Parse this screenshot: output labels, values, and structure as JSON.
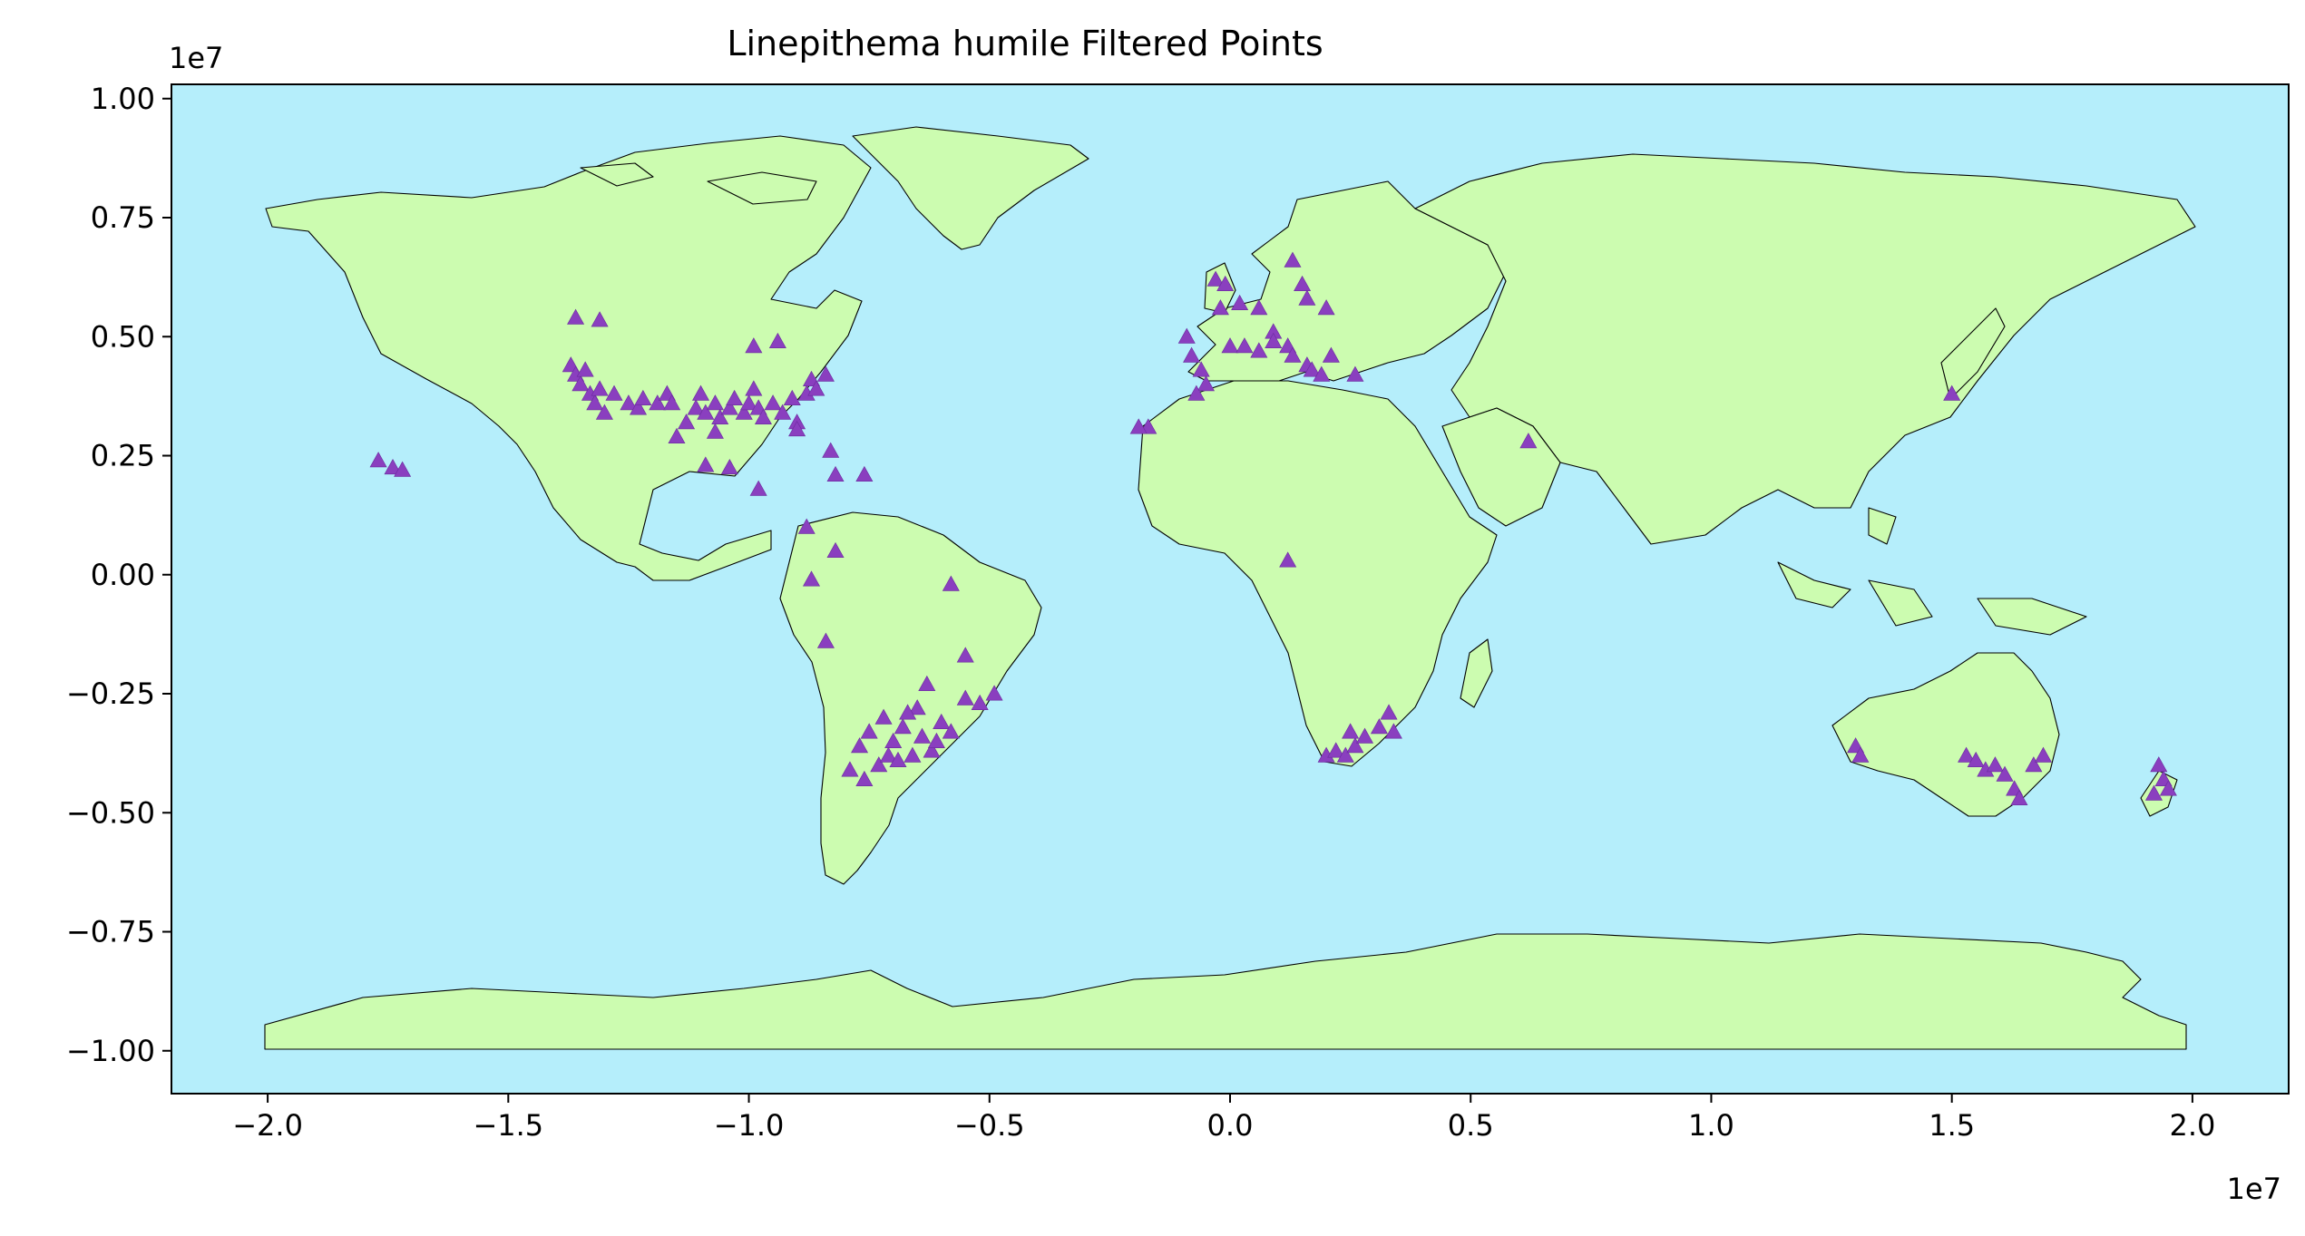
{
  "title": "Linepithema humile Filtered Points",
  "x_axis": {
    "ticks": [
      -20000000.0,
      -15000000.0,
      -10000000.0,
      -5000000.0,
      0.0,
      5000000.0,
      10000000.0,
      15000000.0,
      20000000.0
    ],
    "tick_labels": [
      "−2.0",
      "−1.5",
      "−1.0",
      "−0.5",
      "0.0",
      "0.5",
      "1.0",
      "1.5",
      "2.0"
    ],
    "offset_label": "1e7",
    "range": [
      -22000000.0,
      22000000.0
    ]
  },
  "y_axis": {
    "ticks": [
      10000000.0,
      7500000.0,
      5000000.0,
      2500000.0,
      0.0,
      -2500000.0,
      -5000000.0,
      -7500000.0,
      -10000000.0
    ],
    "tick_labels": [
      "1.00",
      "0.75",
      "0.50",
      "0.25",
      "0.00",
      "−0.25",
      "−0.50",
      "−0.75",
      "−1.00"
    ],
    "offset_label": "1e7",
    "range": [
      -10900000.0,
      10300000.0
    ]
  },
  "colors": {
    "ocean": "#b5eefb",
    "land": "#ccfcb0",
    "border": "#000000",
    "points": "#8a3fbf"
  },
  "marker": "triangle",
  "chart_data": {
    "type": "scatter",
    "title": "Linepithema humile Filtered Points",
    "xlim": [
      -22000000.0,
      22000000.0
    ],
    "ylim": [
      -10900000.0,
      10300000.0
    ],
    "grid": false,
    "points": [
      {
        "x": -13700000.0,
        "y": 4400000.0
      },
      {
        "x": -13600000.0,
        "y": 4200000.0
      },
      {
        "x": -13500000.0,
        "y": 4000000.0
      },
      {
        "x": -13400000.0,
        "y": 4300000.0
      },
      {
        "x": -13300000.0,
        "y": 3800000.0
      },
      {
        "x": -13200000.0,
        "y": 3600000.0
      },
      {
        "x": -13100000.0,
        "y": 3900000.0
      },
      {
        "x": -13000000.0,
        "y": 3400000.0
      },
      {
        "x": -13600000.0,
        "y": 5400000.0
      },
      {
        "x": -13100000.0,
        "y": 5350000.0
      },
      {
        "x": -12800000.0,
        "y": 3800000.0
      },
      {
        "x": -12500000.0,
        "y": 3600000.0
      },
      {
        "x": -12300000.0,
        "y": 3500000.0
      },
      {
        "x": -12200000.0,
        "y": 3700000.0
      },
      {
        "x": -11900000.0,
        "y": 3600000.0
      },
      {
        "x": -11700000.0,
        "y": 3800000.0
      },
      {
        "x": -11600000.0,
        "y": 3600000.0
      },
      {
        "x": -11300000.0,
        "y": 3200000.0
      },
      {
        "x": -11100000.0,
        "y": 3500000.0
      },
      {
        "x": -11000000.0,
        "y": 3800000.0
      },
      {
        "x": -10900000.0,
        "y": 3400000.0
      },
      {
        "x": -10700000.0,
        "y": 3600000.0
      },
      {
        "x": -10600000.0,
        "y": 3300000.0
      },
      {
        "x": -10400000.0,
        "y": 3500000.0
      },
      {
        "x": -10300000.0,
        "y": 3700000.0
      },
      {
        "x": -10100000.0,
        "y": 3400000.0
      },
      {
        "x": -10000000.0,
        "y": 3600000.0
      },
      {
        "x": -9800000.0,
        "y": 3500000.0
      },
      {
        "x": -9700000.0,
        "y": 3300000.0
      },
      {
        "x": -9500000.0,
        "y": 3600000.0
      },
      {
        "x": -9300000.0,
        "y": 3400000.0
      },
      {
        "x": -9100000.0,
        "y": 3700000.0
      },
      {
        "x": -9000000.0,
        "y": 3200000.0
      },
      {
        "x": -8800000.0,
        "y": 3800000.0
      },
      {
        "x": -8700000.0,
        "y": 4100000.0
      },
      {
        "x": -8600000.0,
        "y": 3900000.0
      },
      {
        "x": -8400000.0,
        "y": 4200000.0
      },
      {
        "x": -9900000.0,
        "y": 3900000.0
      },
      {
        "x": -10700000.0,
        "y": 3000000.0
      },
      {
        "x": -9000000.0,
        "y": 3050000.0
      },
      {
        "x": -11500000.0,
        "y": 2900000.0
      },
      {
        "x": -10900000.0,
        "y": 2300000.0
      },
      {
        "x": -10400000.0,
        "y": 2250000.0
      },
      {
        "x": -9900000.0,
        "y": 4800000.0
      },
      {
        "x": -9400000.0,
        "y": 4900000.0
      },
      {
        "x": -8300000.0,
        "y": 2600000.0
      },
      {
        "x": -8200000.0,
        "y": 2100000.0
      },
      {
        "x": -7600000.0,
        "y": 2100000.0
      },
      {
        "x": -9800000.0,
        "y": 1800000.0
      },
      {
        "x": -8800000.0,
        "y": 1000000.0
      },
      {
        "x": -8200000.0,
        "y": 500000.0
      },
      {
        "x": -8700000.0,
        "y": -100000.0
      },
      {
        "x": -8400000.0,
        "y": -1400000.0
      },
      {
        "x": -5800000.0,
        "y": -200000.0
      },
      {
        "x": -17700000.0,
        "y": 2400000.0
      },
      {
        "x": -17400000.0,
        "y": 2250000.0
      },
      {
        "x": -17200000.0,
        "y": 2200000.0
      },
      {
        "x": -7500000.0,
        "y": -3300000.0
      },
      {
        "x": -7200000.0,
        "y": -3000000.0
      },
      {
        "x": -7000000.0,
        "y": -3500000.0
      },
      {
        "x": -6800000.0,
        "y": -3200000.0
      },
      {
        "x": -6600000.0,
        "y": -3800000.0
      },
      {
        "x": -6400000.0,
        "y": -3400000.0
      },
      {
        "x": -6200000.0,
        "y": -3700000.0
      },
      {
        "x": -6500000.0,
        "y": -2800000.0
      },
      {
        "x": -6300000.0,
        "y": -2300000.0
      },
      {
        "x": -6000000.0,
        "y": -3100000.0
      },
      {
        "x": -5800000.0,
        "y": -3300000.0
      },
      {
        "x": -5500000.0,
        "y": -2600000.0
      },
      {
        "x": -4900000.0,
        "y": -2500000.0
      },
      {
        "x": -5200000.0,
        "y": -2700000.0
      },
      {
        "x": -5500000.0,
        "y": -1700000.0
      },
      {
        "x": -7300000.0,
        "y": -4000000.0
      },
      {
        "x": -7600000.0,
        "y": -4300000.0
      },
      {
        "x": -7900000.0,
        "y": -4100000.0
      },
      {
        "x": -7100000.0,
        "y": -3800000.0
      },
      {
        "x": -7700000.0,
        "y": -3600000.0
      },
      {
        "x": -6900000.0,
        "y": -3900000.0
      },
      {
        "x": -6700000.0,
        "y": -2900000.0
      },
      {
        "x": -6100000.0,
        "y": -3500000.0
      },
      {
        "x": -900000.0,
        "y": 5000000.0
      },
      {
        "x": -800000.0,
        "y": 4600000.0
      },
      {
        "x": -600000.0,
        "y": 4300000.0
      },
      {
        "x": -500000.0,
        "y": 4000000.0
      },
      {
        "x": -700000.0,
        "y": 3800000.0
      },
      {
        "x": -300000.0,
        "y": 6200000.0
      },
      {
        "x": -100000.0,
        "y": 6100000.0
      },
      {
        "x": -200000.0,
        "y": 5600000.0
      },
      {
        "x": 200000.0,
        "y": 5700000.0
      },
      {
        "x": 600000.0,
        "y": 5600000.0
      },
      {
        "x": 900000.0,
        "y": 5100000.0
      },
      {
        "x": 1300000.0,
        "y": 6600000.0
      },
      {
        "x": 1500000.0,
        "y": 6100000.0
      },
      {
        "x": 1600000.0,
        "y": 5800000.0
      },
      {
        "x": 2000000.0,
        "y": 5600000.0
      },
      {
        "x": 0.0,
        "y": 4800000.0
      },
      {
        "x": 300000.0,
        "y": 4800000.0
      },
      {
        "x": 600000.0,
        "y": 4700000.0
      },
      {
        "x": 900000.0,
        "y": 4900000.0
      },
      {
        "x": 1200000.0,
        "y": 4800000.0
      },
      {
        "x": 1300000.0,
        "y": 4600000.0
      },
      {
        "x": 1600000.0,
        "y": 4400000.0
      },
      {
        "x": 1700000.0,
        "y": 4300000.0
      },
      {
        "x": 1900000.0,
        "y": 4200000.0
      },
      {
        "x": 2100000.0,
        "y": 4600000.0
      },
      {
        "x": 2600000.0,
        "y": 4200000.0
      },
      {
        "x": -1700000.0,
        "y": 3100000.0
      },
      {
        "x": -1900000.0,
        "y": 3100000.0
      },
      {
        "x": 6200000.0,
        "y": 2800000.0
      },
      {
        "x": 1200000.0,
        "y": 300000.0
      },
      {
        "x": 2000000.0,
        "y": -3800000.0
      },
      {
        "x": 2200000.0,
        "y": -3700000.0
      },
      {
        "x": 2400000.0,
        "y": -3800000.0
      },
      {
        "x": 2600000.0,
        "y": -3600000.0
      },
      {
        "x": 2800000.0,
        "y": -3400000.0
      },
      {
        "x": 3100000.0,
        "y": -3200000.0
      },
      {
        "x": 3300000.0,
        "y": -2900000.0
      },
      {
        "x": 2500000.0,
        "y": -3300000.0
      },
      {
        "x": 3400000.0,
        "y": -3300000.0
      },
      {
        "x": 13000000.0,
        "y": -3600000.0
      },
      {
        "x": 13100000.0,
        "y": -3800000.0
      },
      {
        "x": 15300000.0,
        "y": -3800000.0
      },
      {
        "x": 15500000.0,
        "y": -3900000.0
      },
      {
        "x": 15700000.0,
        "y": -4100000.0
      },
      {
        "x": 15900000.0,
        "y": -4000000.0
      },
      {
        "x": 16100000.0,
        "y": -4200000.0
      },
      {
        "x": 16300000.0,
        "y": -4500000.0
      },
      {
        "x": 16400000.0,
        "y": -4700000.0
      },
      {
        "x": 16700000.0,
        "y": -4000000.0
      },
      {
        "x": 16900000.0,
        "y": -3800000.0
      },
      {
        "x": 15000000.0,
        "y": 3800000.0
      },
      {
        "x": 19300000.0,
        "y": -4000000.0
      },
      {
        "x": 19400000.0,
        "y": -4300000.0
      },
      {
        "x": 19200000.0,
        "y": -4600000.0
      },
      {
        "x": 19500000.0,
        "y": -4500000.0
      }
    ]
  }
}
